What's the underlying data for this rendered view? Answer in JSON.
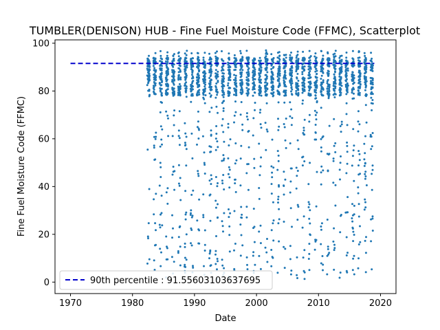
{
  "chart_data": {
    "type": "scatter",
    "title": "TUMBLER(DENISON) HUB - Fine Fuel Moisture Code (FFMC), Scatterplot",
    "xlabel": "Date",
    "ylabel": "Fine Fuel Moisture Code (FFMC)",
    "xlim": [
      1967.5,
      2022.5
    ],
    "ylim": [
      -4.8,
      101.4
    ],
    "xticks": [
      1970,
      1980,
      1990,
      2000,
      2010,
      2020
    ],
    "yticks": [
      0,
      20,
      40,
      60,
      80,
      100
    ],
    "grid": false,
    "legend": {
      "position": "lower-left",
      "entries": [
        "90th percentile : 91.55603103637695"
      ]
    },
    "series": [
      {
        "kind": "reference-line",
        "label": "90th percentile : 91.55603103637695",
        "value": 91.55603103637695,
        "x_range": [
          1970,
          2019
        ],
        "color": "#0000cc",
        "style": "dashed"
      },
      {
        "kind": "points",
        "color": "#1f77b4",
        "seasons": {
          "first_year": 1982,
          "last_year": 2018,
          "season_start": 0.38,
          "season_end": 0.78
        },
        "typical_range": [
          0,
          97
        ],
        "dense_band": [
          78,
          94
        ]
      }
    ]
  }
}
